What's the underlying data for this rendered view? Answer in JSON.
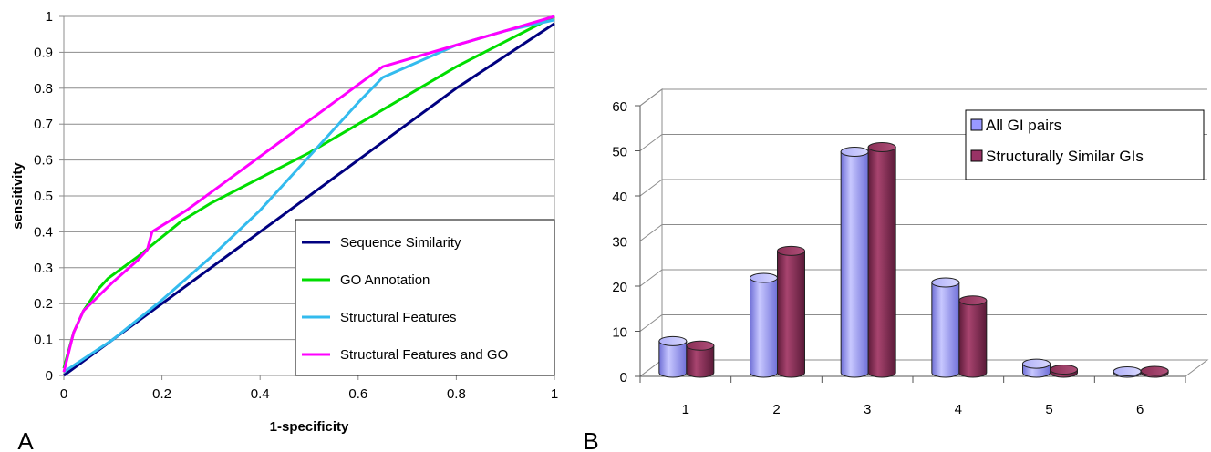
{
  "chart_data": [
    {
      "panel_label": "A",
      "type": "line",
      "xlabel": "1-specificity",
      "ylabel": "sensitivity",
      "xlim": [
        0,
        1
      ],
      "ylim": [
        0,
        1
      ],
      "x_ticks": [
        "0",
        "0.2",
        "0.4",
        "0.6",
        "0.8",
        "1"
      ],
      "y_ticks": [
        "0",
        "0.1",
        "0.2",
        "0.3",
        "0.4",
        "0.5",
        "0.6",
        "0.7",
        "0.8",
        "0.9",
        "1"
      ],
      "grid": "horizontal",
      "legend_position": "bottom-right",
      "series": [
        {
          "name": "Sequence Similarity",
          "color": "#000080",
          "points": [
            [
              0,
              0
            ],
            [
              0.2,
              0.2
            ],
            [
              0.4,
              0.4
            ],
            [
              0.6,
              0.6
            ],
            [
              0.8,
              0.8
            ],
            [
              1,
              0.98
            ]
          ]
        },
        {
          "name": "GO Annotation",
          "color": "#00dd00",
          "points": [
            [
              0,
              0.02
            ],
            [
              0.02,
              0.12
            ],
            [
              0.04,
              0.18
            ],
            [
              0.07,
              0.24
            ],
            [
              0.09,
              0.27
            ],
            [
              0.15,
              0.33
            ],
            [
              0.24,
              0.43
            ],
            [
              0.3,
              0.48
            ],
            [
              0.4,
              0.55
            ],
            [
              0.5,
              0.62
            ],
            [
              0.6,
              0.7
            ],
            [
              0.7,
              0.78
            ],
            [
              0.8,
              0.86
            ],
            [
              0.9,
              0.93
            ],
            [
              1,
              1
            ]
          ]
        },
        {
          "name": "Structural Features",
          "color": "#33bbee",
          "points": [
            [
              0,
              0.01
            ],
            [
              0.1,
              0.1
            ],
            [
              0.2,
              0.21
            ],
            [
              0.3,
              0.33
            ],
            [
              0.4,
              0.46
            ],
            [
              0.5,
              0.61
            ],
            [
              0.6,
              0.76
            ],
            [
              0.65,
              0.83
            ],
            [
              0.7,
              0.86
            ],
            [
              0.8,
              0.92
            ],
            [
              0.9,
              0.96
            ],
            [
              1,
              0.99
            ]
          ]
        },
        {
          "name": "Structural Features and GO",
          "color": "#ff00ff",
          "points": [
            [
              0,
              0.01
            ],
            [
              0.02,
              0.12
            ],
            [
              0.04,
              0.18
            ],
            [
              0.1,
              0.26
            ],
            [
              0.15,
              0.32
            ],
            [
              0.17,
              0.35
            ],
            [
              0.18,
              0.4
            ],
            [
              0.25,
              0.46
            ],
            [
              0.35,
              0.56
            ],
            [
              0.45,
              0.66
            ],
            [
              0.55,
              0.76
            ],
            [
              0.65,
              0.86
            ],
            [
              0.7,
              0.88
            ],
            [
              0.8,
              0.92
            ],
            [
              0.9,
              0.96
            ],
            [
              1,
              1
            ]
          ]
        }
      ]
    },
    {
      "panel_label": "B",
      "type": "bar",
      "categories": [
        "1",
        "2",
        "3",
        "4",
        "5",
        "6"
      ],
      "ylim": [
        0,
        60
      ],
      "y_ticks": [
        "0",
        "10",
        "20",
        "30",
        "40",
        "50",
        "60"
      ],
      "grid": "horizontal",
      "legend_position": "top-right",
      "series": [
        {
          "name": "All GI pairs",
          "color": "#9999ff",
          "values": [
            7,
            21,
            49,
            20,
            2,
            0.3
          ]
        },
        {
          "name": "Structurally Similar GIs",
          "color": "#993366",
          "values": [
            6,
            27,
            50,
            16,
            0.7,
            0.4
          ]
        }
      ]
    }
  ]
}
